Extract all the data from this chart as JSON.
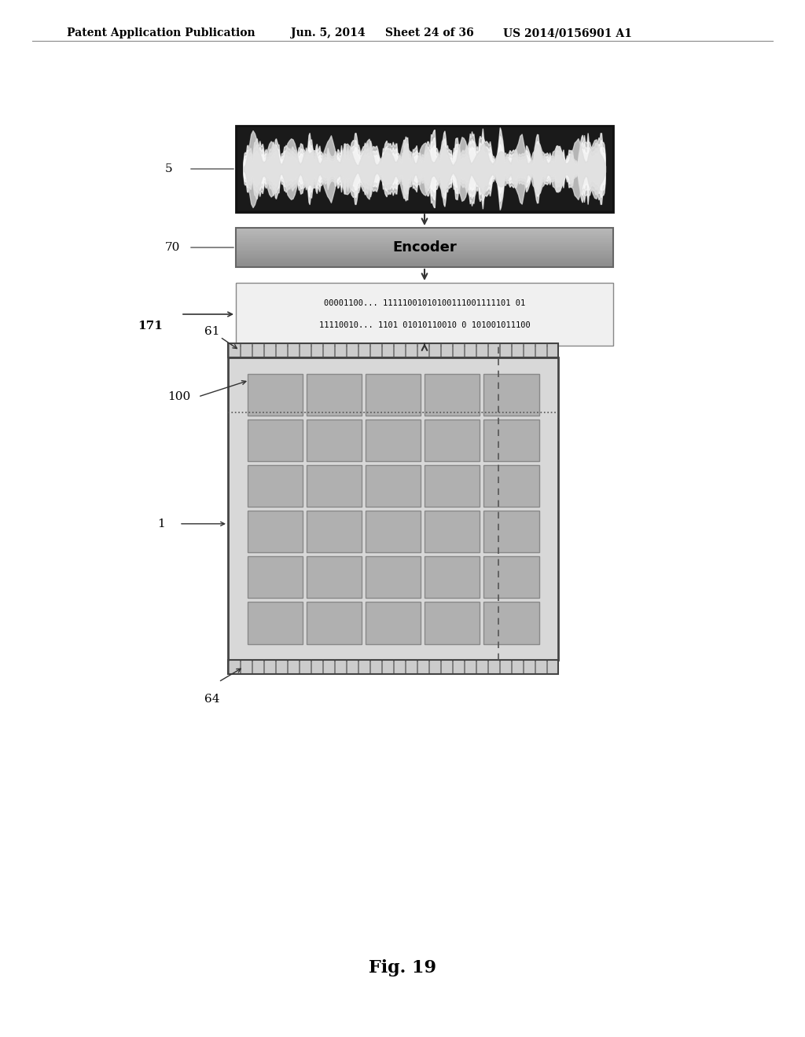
{
  "bg_color": "#ffffff",
  "header_text": "Patent Application Publication",
  "header_date": "Jun. 5, 2014",
  "header_sheet": "Sheet 24 of 36",
  "header_patent": "US 2014/0156901 A1",
  "fig_label": "Fig. 19",
  "waveform_label": "5",
  "encoder_label": "70",
  "encoder_text": "Encoder",
  "bitstream_label": "171",
  "bitstream_line1": "00001100... 11111001010100111001111101 01",
  "bitstream_line2": "11110010... 1101 01010110010 0 101001011100",
  "chip_label": "1",
  "top_bus_label": "61",
  "bottom_bus_label": "64",
  "cell_label": "100",
  "grid_cols": 5,
  "grid_rows": 6,
  "colors": {
    "waveform_bg": "#1a1a1a",
    "waveform_wave": "#e0e0e0",
    "encoder_bg_light": "#c8c8c8",
    "encoder_bg_dark": "#a0a0a0",
    "bitstream_bg": "#f0f0f0",
    "bitstream_border": "#888888",
    "chip_bg": "#d8d8d8",
    "chip_border": "#444444",
    "cell_fill": "#b0b0b0",
    "cell_border": "#888888",
    "bus_tick": "#444444",
    "dashed_line": "#555555",
    "arrow": "#333333",
    "text": "#000000",
    "label_line": "#555555"
  }
}
